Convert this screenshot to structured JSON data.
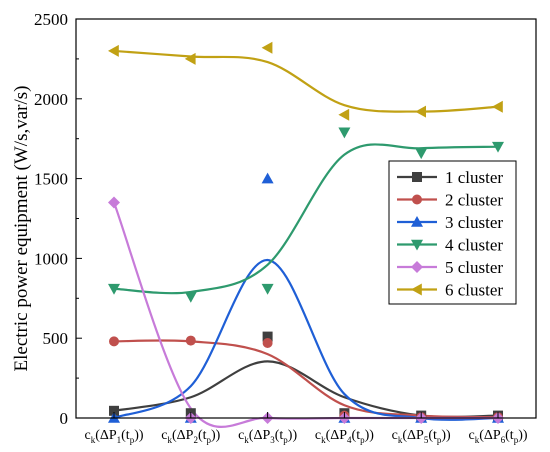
{
  "chart_data": {
    "type": "line",
    "title": "",
    "xlabel": "",
    "ylabel": "Electric power equipment (W/s,var/s)",
    "ylim": [
      0,
      2500
    ],
    "yticks": [
      0,
      500,
      1000,
      1500,
      2000,
      2500
    ],
    "ytick_labels": [
      "0",
      "500",
      "1000",
      "1500",
      "2000",
      "2500"
    ],
    "xtick_labels": [
      {
        "pre": "c",
        "k": "k",
        "mid": "(ΔP",
        "idx": "1",
        "open": "(t",
        "p": "p",
        "close": "))"
      },
      {
        "pre": "c",
        "k": "k",
        "mid": "(ΔP",
        "idx": "2",
        "open": "(t",
        "p": "p",
        "close": "))"
      },
      {
        "pre": "c",
        "k": "k",
        "mid": "(ΔP",
        "idx": "3",
        "open": "(t",
        "p": "p",
        "close": "))"
      },
      {
        "pre": "c",
        "k": "k",
        "mid": "(ΔP",
        "idx": "4",
        "open": "(t",
        "p": "p",
        "close": "))"
      },
      {
        "pre": "c",
        "k": "k",
        "mid": "(ΔP",
        "idx": "5",
        "open": "(t",
        "p": "p",
        "close": "))"
      },
      {
        "pre": "c",
        "k": "k",
        "mid": "(ΔP",
        "idx": "6",
        "open": "(t",
        "p": "p",
        "close": "))"
      }
    ],
    "x": [
      1,
      2,
      3,
      4,
      5,
      6
    ],
    "grid": false,
    "legend_position": "right",
    "series": [
      {
        "name": "1 cluster",
        "color": "#3f3f3f",
        "marker": "square",
        "values": [
          45,
          30,
          510,
          30,
          15,
          15
        ],
        "curve": [
          45,
          130,
          355,
          130,
          15,
          15
        ]
      },
      {
        "name": "2 cluster",
        "color": "#c0504d",
        "marker": "circle",
        "values": [
          480,
          485,
          470,
          15,
          5,
          5
        ],
        "curve": [
          480,
          480,
          400,
          80,
          15,
          5
        ]
      },
      {
        "name": "3 cluster",
        "color": "#1f5fd6",
        "marker": "triangle-up",
        "values": [
          0,
          0,
          1500,
          0,
          0,
          0
        ],
        "curve": [
          0,
          200,
          990,
          150,
          0,
          0
        ]
      },
      {
        "name": "4 cluster",
        "color": "#2e9a6e",
        "marker": "triangle-down",
        "values": [
          810,
          760,
          810,
          1790,
          1660,
          1700
        ],
        "curve": [
          810,
          790,
          960,
          1650,
          1690,
          1700
        ]
      },
      {
        "name": "5 cluster",
        "color": "#c77bd9",
        "marker": "diamond",
        "values": [
          1350,
          0,
          0,
          0,
          0,
          0
        ],
        "curve": [
          1350,
          60,
          0,
          0,
          0,
          0
        ]
      },
      {
        "name": "6 cluster",
        "color": "#c1a114",
        "marker": "triangle-left",
        "values": [
          2300,
          2250,
          2320,
          1900,
          1920,
          1950
        ],
        "curve": [
          2300,
          2265,
          2230,
          1960,
          1920,
          1950
        ]
      }
    ]
  }
}
